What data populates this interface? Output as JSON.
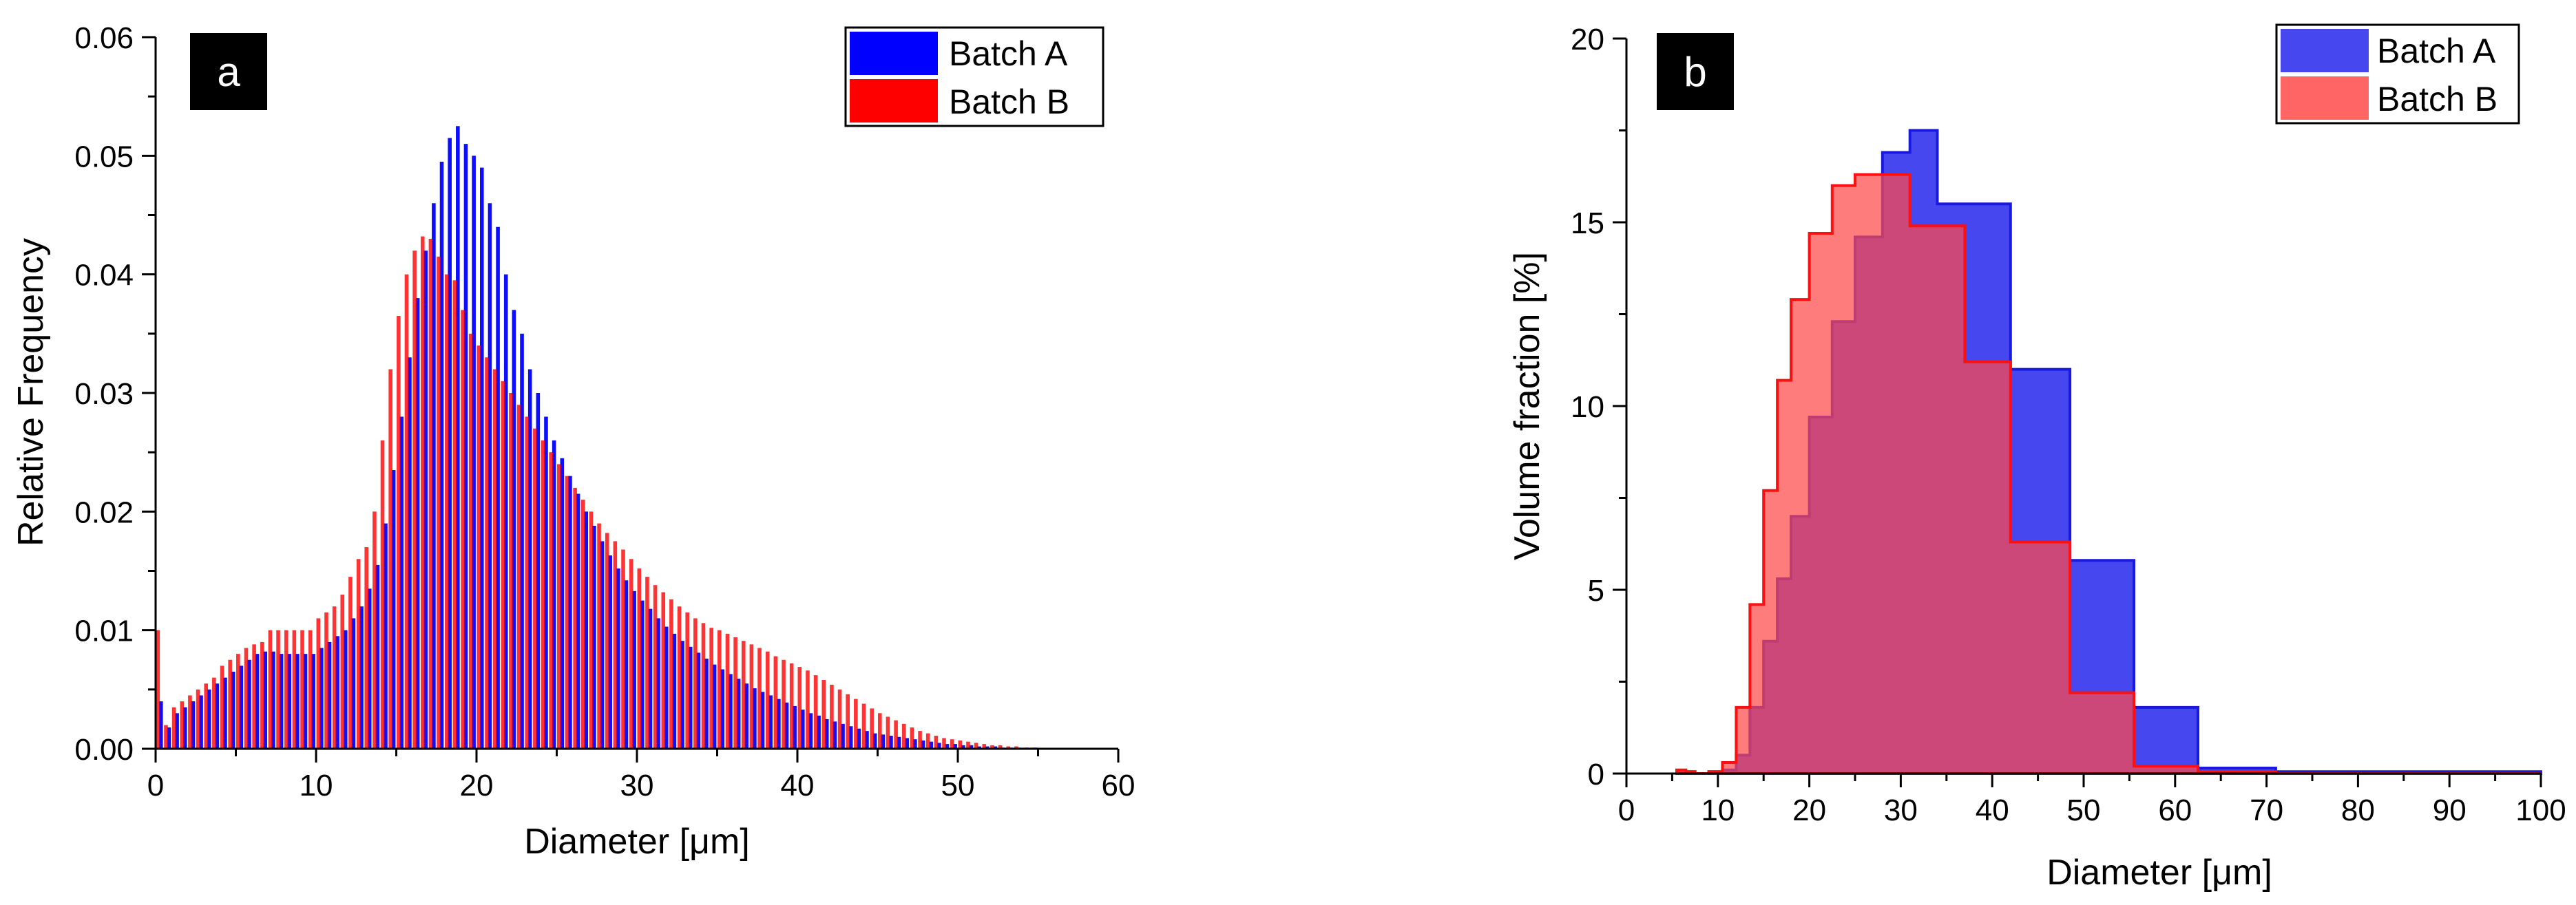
{
  "chart_data": [
    {
      "panel_label": "a",
      "type": "bar",
      "title": "",
      "xlabel": "Diameter [μm]",
      "ylabel": "Relative Frequency",
      "xlim": [
        0,
        60
      ],
      "ylim": [
        0,
        0.06
      ],
      "xticks": [
        0,
        10,
        20,
        30,
        40,
        50,
        60
      ],
      "xtick_labels": [
        "0",
        "10",
        "20",
        "30",
        "40",
        "50",
        "60"
      ],
      "yticks": [
        0,
        0.01,
        0.02,
        0.03,
        0.04,
        0.05,
        0.06
      ],
      "ytick_labels": [
        "0.00",
        "0.01",
        "0.02",
        "0.03",
        "0.04",
        "0.05",
        "0.06"
      ],
      "legend_position": "top-right",
      "series": [
        {
          "name": "Batch A",
          "color": "#0000ff",
          "x": [
            0.25,
            0.75,
            1.25,
            1.75,
            2.25,
            2.75,
            3.25,
            3.75,
            4.25,
            4.75,
            5.25,
            5.75,
            6.25,
            6.75,
            7.25,
            7.75,
            8.25,
            8.75,
            9.25,
            9.75,
            10.25,
            10.75,
            11.25,
            11.75,
            12.25,
            12.75,
            13.25,
            13.75,
            14.25,
            14.75,
            15.25,
            15.75,
            16.25,
            16.75,
            17.25,
            17.75,
            18.25,
            18.75,
            19.25,
            19.75,
            20.25,
            20.75,
            21.25,
            21.75,
            22.25,
            22.75,
            23.25,
            23.75,
            24.25,
            24.75,
            25.25,
            25.75,
            26.25,
            26.75,
            27.25,
            27.75,
            28.25,
            28.75,
            29.25,
            29.75,
            30.25,
            30.75,
            31.25,
            31.75,
            32.25,
            32.75,
            33.25,
            33.75,
            34.25,
            34.75,
            35.25,
            35.75,
            36.25,
            36.75,
            37.25,
            37.75,
            38.25,
            38.75,
            39.25,
            39.75,
            40.25,
            40.75,
            41.25,
            41.75,
            42.25,
            42.75,
            43.25,
            43.75,
            44.25,
            44.75,
            45.25,
            45.75,
            46.25,
            46.75,
            47.25,
            47.75,
            48.25,
            48.75,
            49.25,
            49.75,
            50.25,
            50.75,
            51.25,
            51.75,
            52.25,
            52.75,
            53.25,
            53.75,
            54.25,
            54.75
          ],
          "values": [
            0.004,
            0.0018,
            0.003,
            0.0035,
            0.004,
            0.0045,
            0.005,
            0.0055,
            0.006,
            0.0065,
            0.007,
            0.0075,
            0.008,
            0.0082,
            0.0082,
            0.008,
            0.008,
            0.008,
            0.008,
            0.008,
            0.0085,
            0.009,
            0.0095,
            0.01,
            0.011,
            0.012,
            0.0135,
            0.0155,
            0.019,
            0.0235,
            0.028,
            0.033,
            0.038,
            0.042,
            0.046,
            0.0495,
            0.0515,
            0.0525,
            0.051,
            0.05,
            0.049,
            0.046,
            0.044,
            0.04,
            0.037,
            0.035,
            0.032,
            0.03,
            0.028,
            0.026,
            0.0245,
            0.023,
            0.0215,
            0.02,
            0.0188,
            0.0175,
            0.0163,
            0.0152,
            0.0142,
            0.0133,
            0.0125,
            0.0118,
            0.011,
            0.0103,
            0.0097,
            0.0091,
            0.0086,
            0.0081,
            0.0076,
            0.0071,
            0.0067,
            0.0063,
            0.0059,
            0.0055,
            0.0051,
            0.0048,
            0.0045,
            0.0042,
            0.0039,
            0.0036,
            0.0033,
            0.003,
            0.0028,
            0.0025,
            0.0023,
            0.0021,
            0.0019,
            0.0017,
            0.0015,
            0.0013,
            0.0012,
            0.0011,
            0.001,
            0.0009,
            0.0008,
            0.0007,
            0.0006,
            0.0005,
            0.0004,
            0.0004,
            0.0003,
            0.0003,
            0.0002,
            0.0002,
            0.0002,
            0.0001,
            0.0001,
            0.0001,
            0.0001,
            0.0001
          ]
        },
        {
          "name": "Batch B",
          "color": "#ff0000",
          "x": [
            0.25,
            0.75,
            1.25,
            1.75,
            2.25,
            2.75,
            3.25,
            3.75,
            4.25,
            4.75,
            5.25,
            5.75,
            6.25,
            6.75,
            7.25,
            7.75,
            8.25,
            8.75,
            9.25,
            9.75,
            10.25,
            10.75,
            11.25,
            11.75,
            12.25,
            12.75,
            13.25,
            13.75,
            14.25,
            14.75,
            15.25,
            15.75,
            16.25,
            16.75,
            17.25,
            17.75,
            18.25,
            18.75,
            19.25,
            19.75,
            20.25,
            20.75,
            21.25,
            21.75,
            22.25,
            22.75,
            23.25,
            23.75,
            24.25,
            24.75,
            25.25,
            25.75,
            26.25,
            26.75,
            27.25,
            27.75,
            28.25,
            28.75,
            29.25,
            29.75,
            30.25,
            30.75,
            31.25,
            31.75,
            32.25,
            32.75,
            33.25,
            33.75,
            34.25,
            34.75,
            35.25,
            35.75,
            36.25,
            36.75,
            37.25,
            37.75,
            38.25,
            38.75,
            39.25,
            39.75,
            40.25,
            40.75,
            41.25,
            41.75,
            42.25,
            42.75,
            43.25,
            43.75,
            44.25,
            44.75,
            45.25,
            45.75,
            46.25,
            46.75,
            47.25,
            47.75,
            48.25,
            48.75,
            49.25,
            49.75,
            50.25,
            50.75,
            51.25,
            51.75,
            52.25,
            52.75,
            53.25,
            53.75,
            54.25,
            54.75
          ],
          "values": [
            0.01,
            0.002,
            0.0035,
            0.004,
            0.0045,
            0.005,
            0.0055,
            0.006,
            0.007,
            0.0075,
            0.008,
            0.0085,
            0.0088,
            0.009,
            0.01,
            0.01,
            0.01,
            0.01,
            0.01,
            0.01,
            0.011,
            0.0115,
            0.012,
            0.013,
            0.0145,
            0.016,
            0.017,
            0.02,
            0.026,
            0.032,
            0.0365,
            0.04,
            0.042,
            0.0432,
            0.043,
            0.0415,
            0.04,
            0.0395,
            0.037,
            0.035,
            0.034,
            0.033,
            0.032,
            0.031,
            0.03,
            0.029,
            0.028,
            0.027,
            0.026,
            0.025,
            0.024,
            0.023,
            0.022,
            0.021,
            0.02,
            0.019,
            0.0182,
            0.0175,
            0.0168,
            0.016,
            0.0152,
            0.0145,
            0.0138,
            0.0132,
            0.0126,
            0.012,
            0.0115,
            0.011,
            0.0106,
            0.0102,
            0.01,
            0.0097,
            0.0094,
            0.0091,
            0.0088,
            0.0085,
            0.0082,
            0.0078,
            0.0075,
            0.0072,
            0.0069,
            0.0066,
            0.0062,
            0.0058,
            0.0054,
            0.005,
            0.0046,
            0.0042,
            0.0038,
            0.0034,
            0.003,
            0.0027,
            0.0024,
            0.0021,
            0.0018,
            0.0015,
            0.0013,
            0.0011,
            0.0009,
            0.0008,
            0.0007,
            0.0006,
            0.0005,
            0.0004,
            0.0003,
            0.0003,
            0.0002,
            0.0002,
            0.0001,
            0.0001
          ]
        }
      ]
    },
    {
      "panel_label": "b",
      "type": "area",
      "title": "",
      "xlabel": "Diameter [μm]",
      "ylabel": "Volume fraction [%]",
      "xlim": [
        0,
        100
      ],
      "ylim": [
        0,
        20
      ],
      "xticks": [
        0,
        10,
        20,
        30,
        40,
        50,
        60,
        70,
        80,
        90,
        100
      ],
      "xtick_labels": [
        "0",
        "10",
        "20",
        "30",
        "40",
        "50",
        "60",
        "70",
        "80",
        "90",
        "100"
      ],
      "yticks": [
        0,
        5,
        10,
        15,
        20
      ],
      "ytick_labels": [
        "0",
        "5",
        "10",
        "15",
        "20"
      ],
      "legend_position": "top-right",
      "series": [
        {
          "name": "Batch A",
          "color": "#3333ee",
          "bin_edges": [
            5.5,
            6.5,
            7.5,
            9,
            10.5,
            12,
            13.5,
            15,
            16.5,
            18,
            20,
            22.5,
            25,
            28,
            31,
            34,
            37,
            42,
            48.5,
            55.5,
            62.5,
            71,
            100
          ],
          "values": [
            0.05,
            0.05,
            0,
            0.05,
            0.1,
            0.5,
            1.8,
            3.6,
            5.3,
            7.0,
            9.7,
            12.3,
            14.6,
            16.9,
            17.5,
            15.5,
            15.5,
            11.0,
            5.8,
            1.8,
            0.15,
            0.05
          ]
        },
        {
          "name": "Batch B",
          "color": "#ff4a4a",
          "bin_edges": [
            5.5,
            6.5,
            7.5,
            9,
            10.5,
            12,
            13.5,
            15,
            16.5,
            18,
            20,
            22.5,
            25,
            28,
            31,
            34,
            37,
            42,
            48.5,
            55.5,
            62.5,
            71,
            100
          ],
          "values": [
            0.1,
            0.05,
            0,
            0.05,
            0.3,
            1.8,
            4.6,
            7.7,
            10.7,
            12.9,
            14.7,
            16.0,
            16.3,
            16.3,
            14.9,
            14.9,
            11.2,
            6.3,
            2.2,
            0.2,
            0.05,
            0
          ]
        }
      ]
    }
  ]
}
